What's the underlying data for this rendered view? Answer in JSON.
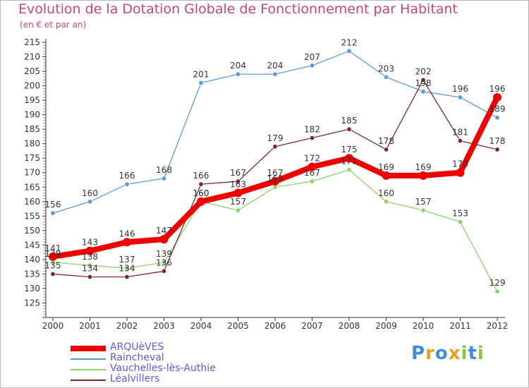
{
  "title": "Evolution de la Dotation Globale de Fonctionnement par Habitant",
  "subtitle": "(en € et par an)",
  "logo": {
    "letters": [
      "P",
      "r",
      "o",
      "x",
      "i",
      "t",
      "i"
    ],
    "colors": [
      "#3a8fd8",
      "#e8a020",
      "#3a8fd8",
      "#e8a020",
      "#8cc63f",
      "#3a8fd8",
      "#8cc63f"
    ]
  },
  "chart_data": {
    "type": "line",
    "x": [
      "2000",
      "2001",
      "2002",
      "2003",
      "2004",
      "2005",
      "2006",
      "2007",
      "2008",
      "2009",
      "2010",
      "2011",
      "2012"
    ],
    "ylim": [
      120,
      215
    ],
    "yticks": [
      125,
      130,
      135,
      140,
      145,
      150,
      155,
      160,
      165,
      170,
      175,
      180,
      185,
      190,
      195,
      200,
      205,
      210,
      215
    ],
    "grid": false,
    "legend_position": "bottom-left",
    "series": [
      {
        "name": "Raincheval",
        "color": "#5b9bd5",
        "values": [
          156,
          160,
          166,
          168,
          201,
          204,
          204,
          207,
          212,
          203,
          198,
          196,
          189
        ]
      },
      {
        "name": "Vauchelles-lès-Authie",
        "color": "#8fd16a",
        "values": [
          139,
          138,
          137,
          139,
          160,
          157,
          165,
          167,
          171,
          160,
          157,
          153,
          129
        ]
      },
      {
        "name": "Léalvillers",
        "color": "#7a2a2a",
        "values": [
          135,
          134,
          134,
          136,
          166,
          167,
          179,
          182,
          185,
          178,
          202,
          181,
          178
        ]
      },
      {
        "name": "ARQUèVES",
        "color": "#ee0000",
        "values": [
          141,
          143,
          146,
          147,
          160,
          163,
          167,
          172,
          175,
          169,
          169,
          170,
          196
        ]
      }
    ],
    "legend_order": [
      "ARQUèVES",
      "Raincheval",
      "Vauchelles-lès-Authie",
      "Léalvillers"
    ]
  }
}
